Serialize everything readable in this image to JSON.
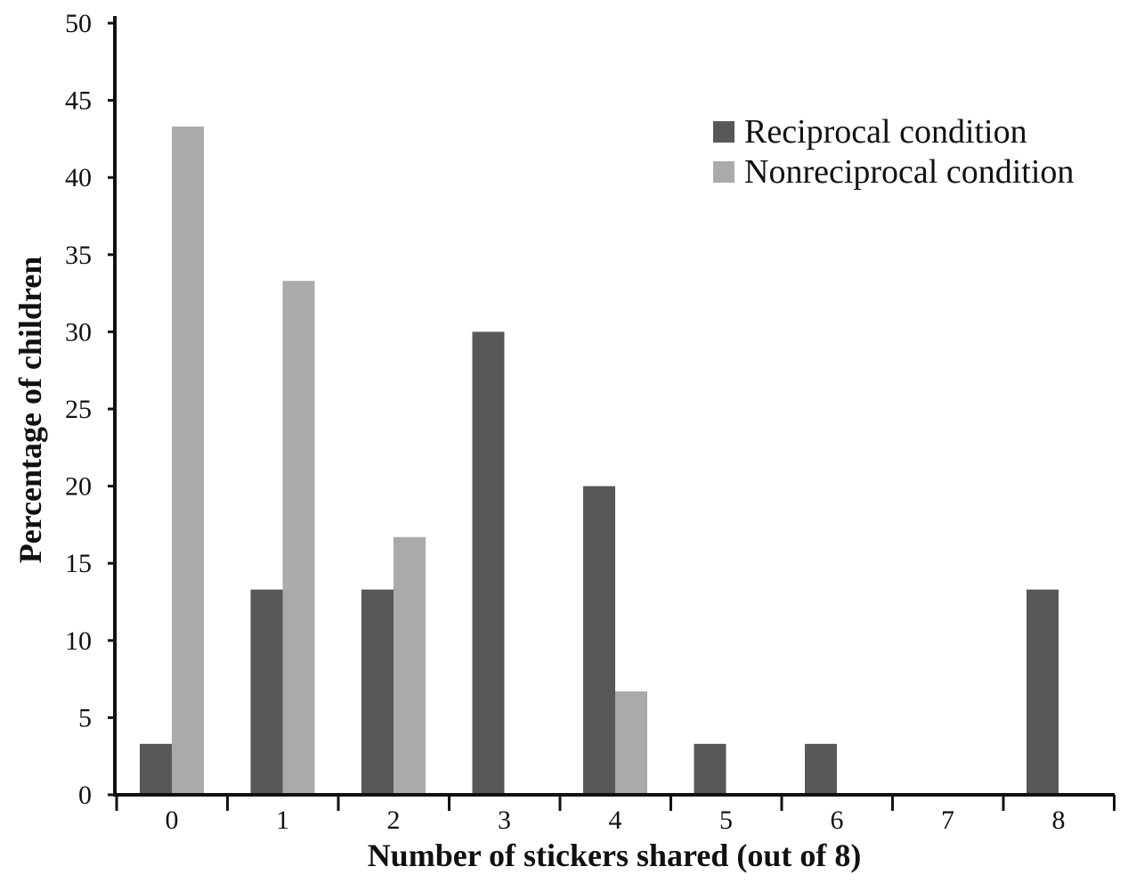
{
  "chart_data": {
    "type": "bar",
    "title": "",
    "xlabel": "Number of stickers shared (out of 8)",
    "ylabel": "Percentage of children",
    "categories": [
      "0",
      "1",
      "2",
      "3",
      "4",
      "5",
      "6",
      "7",
      "8"
    ],
    "series": [
      {
        "name": "Reciprocal condition",
        "color": "#585858",
        "values": [
          3.3,
          13.3,
          13.3,
          30.0,
          20.0,
          3.3,
          3.3,
          0,
          13.3
        ]
      },
      {
        "name": "Nonreciprocal condition",
        "color": "#aaaaaa",
        "values": [
          43.3,
          33.3,
          16.7,
          0,
          6.7,
          0,
          0,
          0,
          0
        ]
      }
    ],
    "ylim": [
      0,
      50
    ],
    "yticks": [
      0,
      5,
      10,
      15,
      20,
      25,
      30,
      35,
      40,
      45,
      50
    ],
    "grid": false,
    "legend_position": "top-right"
  }
}
